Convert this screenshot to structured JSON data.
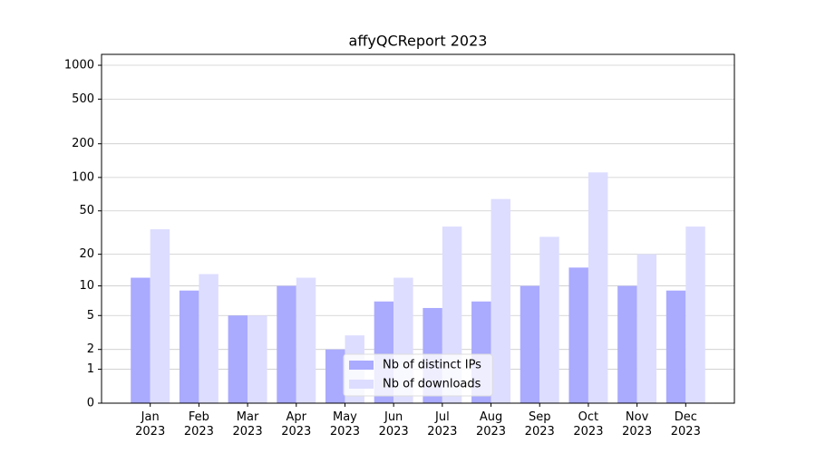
{
  "chart_data": {
    "type": "bar",
    "title": "affyQCReport 2023",
    "categories": [
      "Jan\n2023",
      "Feb\n2023",
      "Mar\n2023",
      "Apr\n2023",
      "May\n2023",
      "Jun\n2023",
      "Jul\n2023",
      "Aug\n2023",
      "Sep\n2023",
      "Oct\n2023",
      "Nov\n2023",
      "Dec\n2023"
    ],
    "series": [
      {
        "name": "Nb of distinct IPs",
        "color": "#aaaaff",
        "values": [
          12,
          9,
          5,
          10,
          2,
          7,
          6,
          7,
          10,
          15,
          10,
          9
        ]
      },
      {
        "name": "Nb of downloads",
        "color": "#ddddff",
        "values": [
          34,
          13,
          5,
          12,
          3,
          12,
          36,
          64,
          29,
          111,
          20,
          36
        ]
      }
    ],
    "yscale": "log1p",
    "ylim": [
      0,
      1250
    ],
    "yticks": [
      0,
      1,
      2,
      5,
      10,
      20,
      50,
      100,
      200,
      500,
      1000
    ],
    "grid": true,
    "legend": "lower center"
  }
}
